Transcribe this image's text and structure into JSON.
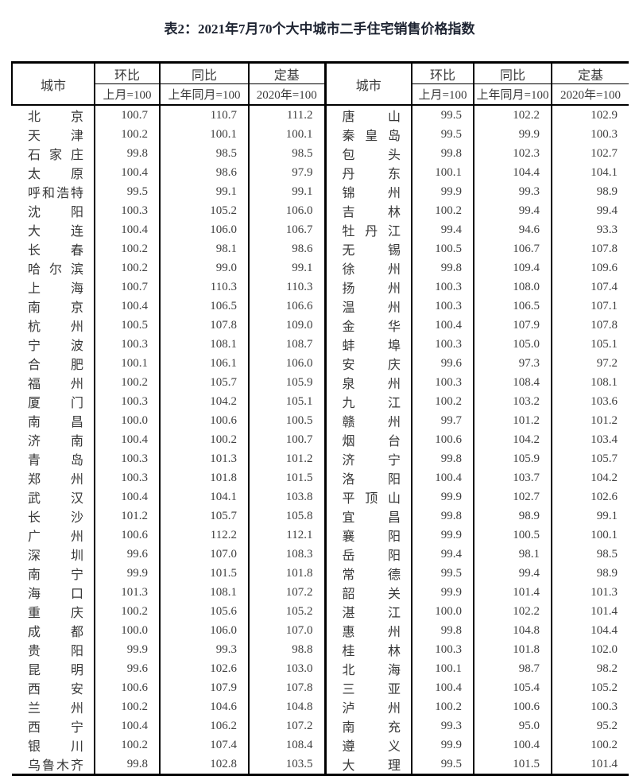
{
  "page": {
    "title": "表2：2021年7月70个大中城市二手住宅销售价格指数"
  },
  "table": {
    "headers": {
      "city": "城市",
      "mom": "环比",
      "yoy": "同比",
      "base": "定基",
      "mom_sub": "上月=100",
      "yoy_sub": "上年同月=100",
      "base_sub": "2020年=100"
    },
    "left_rows": [
      {
        "city": "北京",
        "mom": "100.7",
        "yoy": "110.7",
        "base": "111.2"
      },
      {
        "city": "天津",
        "mom": "100.2",
        "yoy": "100.1",
        "base": "100.1"
      },
      {
        "city": "石家庄",
        "mom": "99.8",
        "yoy": "98.5",
        "base": "98.5"
      },
      {
        "city": "太原",
        "mom": "100.4",
        "yoy": "98.6",
        "base": "97.9"
      },
      {
        "city": "呼和浩特",
        "mom": "99.5",
        "yoy": "99.1",
        "base": "99.1"
      },
      {
        "city": "沈阳",
        "mom": "100.3",
        "yoy": "105.2",
        "base": "106.0"
      },
      {
        "city": "大连",
        "mom": "100.4",
        "yoy": "106.0",
        "base": "106.7"
      },
      {
        "city": "长春",
        "mom": "100.2",
        "yoy": "98.1",
        "base": "98.6"
      },
      {
        "city": "哈尔滨",
        "mom": "100.2",
        "yoy": "99.0",
        "base": "99.1"
      },
      {
        "city": "上海",
        "mom": "100.7",
        "yoy": "110.3",
        "base": "110.3"
      },
      {
        "city": "南京",
        "mom": "100.4",
        "yoy": "106.5",
        "base": "106.6"
      },
      {
        "city": "杭州",
        "mom": "100.5",
        "yoy": "107.8",
        "base": "109.0"
      },
      {
        "city": "宁波",
        "mom": "100.3",
        "yoy": "108.1",
        "base": "108.7"
      },
      {
        "city": "合肥",
        "mom": "100.1",
        "yoy": "106.1",
        "base": "106.0"
      },
      {
        "city": "福州",
        "mom": "100.2",
        "yoy": "105.7",
        "base": "105.9"
      },
      {
        "city": "厦门",
        "mom": "100.3",
        "yoy": "104.2",
        "base": "105.1"
      },
      {
        "city": "南昌",
        "mom": "100.0",
        "yoy": "100.6",
        "base": "100.5"
      },
      {
        "city": "济南",
        "mom": "100.4",
        "yoy": "100.2",
        "base": "100.7"
      },
      {
        "city": "青岛",
        "mom": "100.3",
        "yoy": "101.3",
        "base": "101.2"
      },
      {
        "city": "郑州",
        "mom": "100.3",
        "yoy": "101.8",
        "base": "101.5"
      },
      {
        "city": "武汉",
        "mom": "100.4",
        "yoy": "104.1",
        "base": "103.8"
      },
      {
        "city": "长沙",
        "mom": "101.2",
        "yoy": "105.7",
        "base": "105.8"
      },
      {
        "city": "广州",
        "mom": "100.6",
        "yoy": "112.2",
        "base": "112.1"
      },
      {
        "city": "深圳",
        "mom": "99.6",
        "yoy": "107.0",
        "base": "108.3"
      },
      {
        "city": "南宁",
        "mom": "99.9",
        "yoy": "101.5",
        "base": "101.8"
      },
      {
        "city": "海口",
        "mom": "101.3",
        "yoy": "108.1",
        "base": "107.2"
      },
      {
        "city": "重庆",
        "mom": "100.2",
        "yoy": "105.6",
        "base": "105.2"
      },
      {
        "city": "成都",
        "mom": "100.0",
        "yoy": "106.0",
        "base": "107.0"
      },
      {
        "city": "贵阳",
        "mom": "99.9",
        "yoy": "99.3",
        "base": "98.8"
      },
      {
        "city": "昆明",
        "mom": "99.6",
        "yoy": "102.6",
        "base": "103.0"
      },
      {
        "city": "西安",
        "mom": "100.6",
        "yoy": "107.9",
        "base": "107.8"
      },
      {
        "city": "兰州",
        "mom": "100.2",
        "yoy": "104.6",
        "base": "104.8"
      },
      {
        "city": "西宁",
        "mom": "100.4",
        "yoy": "106.2",
        "base": "107.2"
      },
      {
        "city": "银川",
        "mom": "100.2",
        "yoy": "107.4",
        "base": "108.4"
      },
      {
        "city": "乌鲁木齐",
        "mom": "99.8",
        "yoy": "102.8",
        "base": "103.5"
      }
    ],
    "right_rows": [
      {
        "city": "唐山",
        "mom": "99.5",
        "yoy": "102.2",
        "base": "102.9"
      },
      {
        "city": "秦皇岛",
        "mom": "99.5",
        "yoy": "99.9",
        "base": "100.3"
      },
      {
        "city": "包头",
        "mom": "99.8",
        "yoy": "102.3",
        "base": "102.7"
      },
      {
        "city": "丹东",
        "mom": "100.1",
        "yoy": "104.4",
        "base": "104.1"
      },
      {
        "city": "锦州",
        "mom": "99.9",
        "yoy": "99.3",
        "base": "98.9"
      },
      {
        "city": "吉林",
        "mom": "100.2",
        "yoy": "99.4",
        "base": "99.4"
      },
      {
        "city": "牡丹江",
        "mom": "99.4",
        "yoy": "94.6",
        "base": "93.3"
      },
      {
        "city": "无锡",
        "mom": "100.5",
        "yoy": "106.7",
        "base": "107.8"
      },
      {
        "city": "徐州",
        "mom": "99.8",
        "yoy": "109.4",
        "base": "109.6"
      },
      {
        "city": "扬州",
        "mom": "100.3",
        "yoy": "108.0",
        "base": "107.4"
      },
      {
        "city": "温州",
        "mom": "100.3",
        "yoy": "106.5",
        "base": "107.1"
      },
      {
        "city": "金华",
        "mom": "100.4",
        "yoy": "107.9",
        "base": "107.8"
      },
      {
        "city": "蚌埠",
        "mom": "100.3",
        "yoy": "105.0",
        "base": "105.1"
      },
      {
        "city": "安庆",
        "mom": "99.6",
        "yoy": "97.3",
        "base": "97.2"
      },
      {
        "city": "泉州",
        "mom": "100.3",
        "yoy": "108.4",
        "base": "108.1"
      },
      {
        "city": "九江",
        "mom": "100.2",
        "yoy": "103.2",
        "base": "103.6"
      },
      {
        "city": "赣州",
        "mom": "99.7",
        "yoy": "101.2",
        "base": "101.2"
      },
      {
        "city": "烟台",
        "mom": "100.6",
        "yoy": "104.2",
        "base": "103.4"
      },
      {
        "city": "济宁",
        "mom": "99.8",
        "yoy": "105.9",
        "base": "105.7"
      },
      {
        "city": "洛阳",
        "mom": "100.4",
        "yoy": "103.7",
        "base": "104.2"
      },
      {
        "city": "平顶山",
        "mom": "99.9",
        "yoy": "102.7",
        "base": "102.6"
      },
      {
        "city": "宜昌",
        "mom": "99.8",
        "yoy": "98.9",
        "base": "99.1"
      },
      {
        "city": "襄阳",
        "mom": "99.9",
        "yoy": "100.5",
        "base": "100.1"
      },
      {
        "city": "岳阳",
        "mom": "99.4",
        "yoy": "98.1",
        "base": "98.5"
      },
      {
        "city": "常德",
        "mom": "99.5",
        "yoy": "99.4",
        "base": "98.9"
      },
      {
        "city": "韶关",
        "mom": "99.9",
        "yoy": "101.4",
        "base": "101.3"
      },
      {
        "city": "湛江",
        "mom": "100.0",
        "yoy": "102.2",
        "base": "101.4"
      },
      {
        "city": "惠州",
        "mom": "99.8",
        "yoy": "104.8",
        "base": "104.4"
      },
      {
        "city": "桂林",
        "mom": "100.3",
        "yoy": "101.8",
        "base": "102.0"
      },
      {
        "city": "北海",
        "mom": "100.1",
        "yoy": "98.7",
        "base": "98.2"
      },
      {
        "city": "三亚",
        "mom": "100.4",
        "yoy": "105.4",
        "base": "105.2"
      },
      {
        "city": "泸州",
        "mom": "100.2",
        "yoy": "100.6",
        "base": "100.3"
      },
      {
        "city": "南充",
        "mom": "99.3",
        "yoy": "95.0",
        "base": "95.2"
      },
      {
        "city": "遵义",
        "mom": "99.9",
        "yoy": "100.4",
        "base": "100.2"
      },
      {
        "city": "大理",
        "mom": "99.5",
        "yoy": "101.5",
        "base": "101.4"
      }
    ]
  },
  "colors": {
    "title_text": "#1e2432",
    "body_text": "#3d3d3d",
    "grid_line": "#000000",
    "background": "#ffffff"
  }
}
